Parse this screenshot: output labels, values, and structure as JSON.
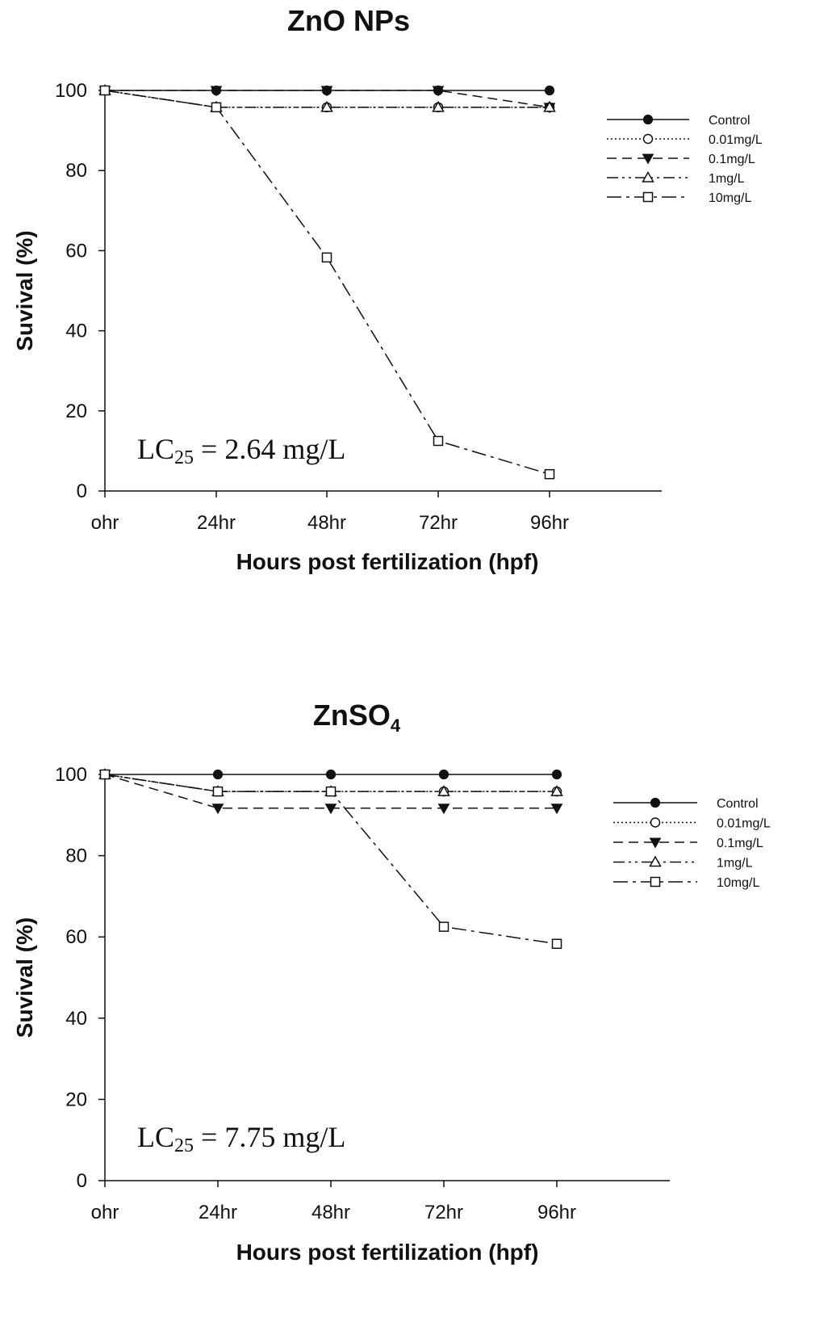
{
  "chart_data": [
    {
      "type": "line",
      "title": "ZnO NPs",
      "title_subscript": "",
      "xlabel": "Hours post fertilization (hpf)",
      "ylabel": "Suvival (%)",
      "categories": [
        "ohr",
        "24hr",
        "48hr",
        "72hr",
        "96hr"
      ],
      "ylim": [
        0,
        100
      ],
      "yticks": [
        "0",
        "20",
        "40",
        "60",
        "80",
        "100"
      ],
      "legend_position": "top-right",
      "annotation": {
        "prefix": "LC",
        "subscript": "25",
        "suffix": " = 2.64 mg/L"
      },
      "series": [
        {
          "name": "Control",
          "marker": "filled-circle",
          "dash": "solid",
          "values": [
            100,
            100,
            100,
            100,
            100
          ]
        },
        {
          "name": "0.01mg/L",
          "marker": "open-circle",
          "dash": "dotted",
          "values": [
            100,
            95.8,
            95.8,
            95.8,
            95.8
          ]
        },
        {
          "name": "0.1mg/L",
          "marker": "filled-triangle-down",
          "dash": "dashed",
          "values": [
            100,
            100,
            100,
            100,
            95.8
          ]
        },
        {
          "name": "1mg/L",
          "marker": "open-triangle-up",
          "dash": "dash-dot-dot",
          "values": [
            100,
            95.8,
            95.8,
            95.8,
            95.8
          ]
        },
        {
          "name": "10mg/L",
          "marker": "open-square",
          "dash": "dash-dot",
          "values": [
            100,
            95.8,
            58.3,
            12.5,
            4.2
          ]
        }
      ]
    },
    {
      "type": "line",
      "title": "ZnSO",
      "title_subscript": "4",
      "xlabel": "Hours post fertilization (hpf)",
      "ylabel": "Suvival (%)",
      "categories": [
        "ohr",
        "24hr",
        "48hr",
        "72hr",
        "96hr"
      ],
      "ylim": [
        0,
        100
      ],
      "yticks": [
        "0",
        "20",
        "40",
        "60",
        "80",
        "100"
      ],
      "legend_position": "top-right",
      "annotation": {
        "prefix": "LC",
        "subscript": "25",
        "suffix": " = 7.75 mg/L"
      },
      "series": [
        {
          "name": "Control",
          "marker": "filled-circle",
          "dash": "solid",
          "values": [
            100,
            100,
            100,
            100,
            100
          ]
        },
        {
          "name": "0.01mg/L",
          "marker": "open-circle",
          "dash": "dotted",
          "values": [
            100,
            95.8,
            95.8,
            95.8,
            95.8
          ]
        },
        {
          "name": "0.1mg/L",
          "marker": "filled-triangle-down",
          "dash": "dashed",
          "values": [
            100,
            91.7,
            91.7,
            91.7,
            91.7
          ]
        },
        {
          "name": "1mg/L",
          "marker": "open-triangle-up",
          "dash": "dash-dot-dot",
          "values": [
            100,
            95.8,
            95.8,
            95.8,
            95.8
          ]
        },
        {
          "name": "10mg/L",
          "marker": "open-square",
          "dash": "dash-dot",
          "values": [
            100,
            95.8,
            95.8,
            62.5,
            58.3
          ]
        }
      ]
    }
  ]
}
